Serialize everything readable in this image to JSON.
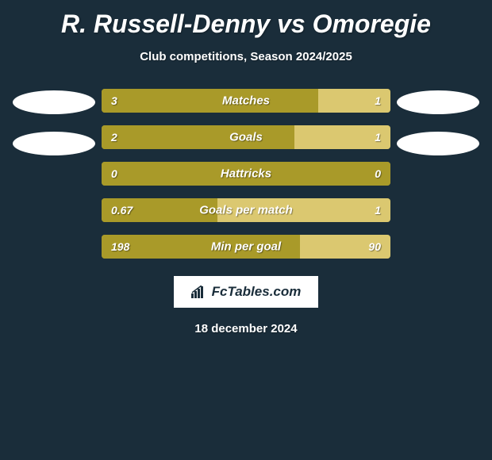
{
  "background_color": "#1a2d3a",
  "text_color": "#ffffff",
  "title": "R. Russell-Denny vs Omoregie",
  "title_fontsize": 32,
  "subtitle": "Club competitions, Season 2024/2025",
  "subtitle_fontsize": 15,
  "left_color": "#a99a29",
  "right_color": "#dbc870",
  "badge_left_color": "#ffffff",
  "badge_right_color": "#ffffff",
  "rows": [
    {
      "label": "Matches",
      "left_val": "3",
      "right_val": "1",
      "left_pct": 75,
      "right_pct": 25
    },
    {
      "label": "Goals",
      "left_val": "2",
      "right_val": "1",
      "left_pct": 66.7,
      "right_pct": 33.3
    },
    {
      "label": "Hattricks",
      "left_val": "0",
      "right_val": "0",
      "left_pct": 100,
      "right_pct": 0
    },
    {
      "label": "Goals per match",
      "left_val": "0.67",
      "right_val": "1",
      "left_pct": 40.1,
      "right_pct": 59.9
    },
    {
      "label": "Min per goal",
      "left_val": "198",
      "right_val": "90",
      "left_pct": 68.8,
      "right_pct": 31.2
    }
  ],
  "logo_text": "FcTables.com",
  "logo_border_color": "#ffffff",
  "date_text": "18 december 2024"
}
